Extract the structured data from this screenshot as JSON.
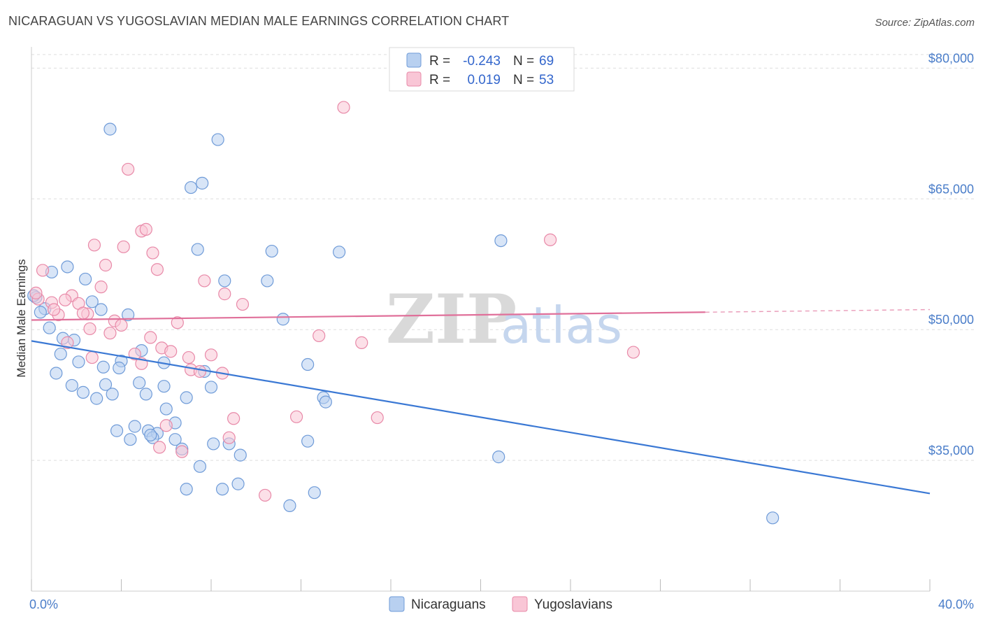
{
  "title": "NICARAGUAN VS YUGOSLAVIAN MEDIAN MALE EARNINGS CORRELATION CHART",
  "source": "Source: ZipAtlas.com",
  "watermark": {
    "zip": "ZIP",
    "atlas": "atlas"
  },
  "colors": {
    "blue_fill": "#b8d0f0",
    "blue_stroke": "#6f9bd8",
    "blue_line": "#3a78d4",
    "pink_fill": "#f9c6d6",
    "pink_stroke": "#e889a8",
    "pink_line": "#e0709a",
    "grid": "#dddddd",
    "axis_text": "#4a7dc9"
  },
  "legend": {
    "rows": [
      {
        "r_label": "R =",
        "r_value": "-0.243",
        "n_label": "N =",
        "n_value": "69"
      },
      {
        "r_label": "R =",
        "r_value": "0.019",
        "n_label": "N =",
        "n_value": "53"
      }
    ]
  },
  "bottom_legend": [
    "Nicaraguans",
    "Yugoslavians"
  ],
  "chart_data": {
    "type": "scatter",
    "title": "NICARAGUAN VS YUGOSLAVIAN MEDIAN MALE EARNINGS CORRELATION CHART",
    "xlabel": "",
    "ylabel": "Median Male Earnings",
    "xlim": [
      0,
      40
    ],
    "ylim": [
      20000,
      83000
    ],
    "x_tick_labels": [
      "0.0%",
      "40.0%"
    ],
    "y_ticks": [
      35000,
      50000,
      65000,
      80000
    ],
    "y_tick_labels": [
      "$35,000",
      "$50,000",
      "$65,000",
      "$80,000"
    ],
    "grid": true,
    "legend_position": "top-center",
    "series": [
      {
        "name": "Nicaraguans",
        "r": -0.243,
        "n": 69,
        "trend": {
          "x": [
            0,
            40
          ],
          "y": [
            48700,
            31200
          ]
        },
        "points": [
          [
            3.5,
            73000
          ],
          [
            8.3,
            71800
          ],
          [
            7.1,
            66300
          ],
          [
            7.6,
            66800
          ],
          [
            20.9,
            60200
          ],
          [
            7.4,
            59200
          ],
          [
            10.7,
            59000
          ],
          [
            13.7,
            58900
          ],
          [
            1.6,
            57200
          ],
          [
            0.9,
            56600
          ],
          [
            2.4,
            55800
          ],
          [
            8.6,
            55600
          ],
          [
            10.5,
            55600
          ],
          [
            0.2,
            53700
          ],
          [
            2.7,
            53200
          ],
          [
            0.6,
            52400
          ],
          [
            3.1,
            52300
          ],
          [
            0.4,
            52000
          ],
          [
            4.3,
            51700
          ],
          [
            11.2,
            51200
          ],
          [
            0.8,
            50200
          ],
          [
            1.4,
            49000
          ],
          [
            1.9,
            48800
          ],
          [
            4.9,
            47600
          ],
          [
            1.3,
            47200
          ],
          [
            4.0,
            46400
          ],
          [
            2.1,
            46300
          ],
          [
            5.9,
            46200
          ],
          [
            3.2,
            45700
          ],
          [
            3.9,
            45600
          ],
          [
            7.7,
            45200
          ],
          [
            12.3,
            46000
          ],
          [
            1.1,
            45000
          ],
          [
            1.8,
            43600
          ],
          [
            3.3,
            43700
          ],
          [
            4.8,
            43900
          ],
          [
            5.9,
            43500
          ],
          [
            8.0,
            43400
          ],
          [
            2.3,
            42800
          ],
          [
            3.6,
            42600
          ],
          [
            5.1,
            42600
          ],
          [
            6.9,
            42200
          ],
          [
            2.9,
            42100
          ],
          [
            13.0,
            42200
          ],
          [
            13.1,
            41700
          ],
          [
            6.0,
            40900
          ],
          [
            6.4,
            39300
          ],
          [
            3.8,
            38400
          ],
          [
            4.6,
            38900
          ],
          [
            5.2,
            38400
          ],
          [
            5.6,
            38100
          ],
          [
            5.4,
            37600
          ],
          [
            4.4,
            37400
          ],
          [
            6.4,
            37400
          ],
          [
            12.3,
            37200
          ],
          [
            8.8,
            36900
          ],
          [
            8.1,
            36900
          ],
          [
            6.7,
            36300
          ],
          [
            9.3,
            35600
          ],
          [
            20.8,
            35400
          ],
          [
            7.5,
            34300
          ],
          [
            6.9,
            31700
          ],
          [
            8.5,
            31700
          ],
          [
            9.2,
            32300
          ],
          [
            12.6,
            31300
          ],
          [
            11.5,
            29800
          ],
          [
            33.0,
            28400
          ],
          [
            0.1,
            53900
          ],
          [
            5.3,
            37900
          ]
        ]
      },
      {
        "name": "Yugoslavians",
        "r": 0.019,
        "n": 53,
        "trend": {
          "x": [
            0,
            30.0
          ],
          "y": [
            51100,
            52000
          ]
        },
        "trend_dashed": {
          "x": [
            30.0,
            40
          ],
          "y": [
            52000,
            52300
          ]
        },
        "points": [
          [
            13.9,
            75500
          ],
          [
            4.3,
            68400
          ],
          [
            23.1,
            60300
          ],
          [
            4.9,
            61300
          ],
          [
            5.1,
            61500
          ],
          [
            2.8,
            59700
          ],
          [
            4.1,
            59500
          ],
          [
            5.4,
            58800
          ],
          [
            3.3,
            57400
          ],
          [
            5.6,
            56900
          ],
          [
            0.5,
            56800
          ],
          [
            7.7,
            55600
          ],
          [
            3.1,
            54900
          ],
          [
            8.6,
            54100
          ],
          [
            1.8,
            53900
          ],
          [
            1.5,
            53400
          ],
          [
            0.3,
            53500
          ],
          [
            2.1,
            53000
          ],
          [
            9.4,
            52900
          ],
          [
            0.9,
            53100
          ],
          [
            2.5,
            51800
          ],
          [
            2.3,
            51900
          ],
          [
            1.2,
            51700
          ],
          [
            3.7,
            51000
          ],
          [
            6.5,
            50800
          ],
          [
            4.0,
            50500
          ],
          [
            3.5,
            49600
          ],
          [
            12.8,
            49300
          ],
          [
            5.3,
            49100
          ],
          [
            14.7,
            48500
          ],
          [
            1.6,
            48500
          ],
          [
            5.8,
            47900
          ],
          [
            6.2,
            47500
          ],
          [
            26.8,
            47400
          ],
          [
            4.6,
            47200
          ],
          [
            8.0,
            47100
          ],
          [
            7.0,
            46800
          ],
          [
            2.7,
            46800
          ],
          [
            4.9,
            46100
          ],
          [
            7.1,
            45400
          ],
          [
            8.5,
            45000
          ],
          [
            7.5,
            45200
          ],
          [
            11.8,
            40000
          ],
          [
            9.0,
            39800
          ],
          [
            15.4,
            39900
          ],
          [
            6.0,
            39000
          ],
          [
            8.8,
            37600
          ],
          [
            5.7,
            36500
          ],
          [
            6.7,
            36000
          ],
          [
            10.4,
            31000
          ],
          [
            0.2,
            54200
          ],
          [
            1.0,
            52300
          ],
          [
            2.6,
            50100
          ]
        ]
      }
    ]
  }
}
